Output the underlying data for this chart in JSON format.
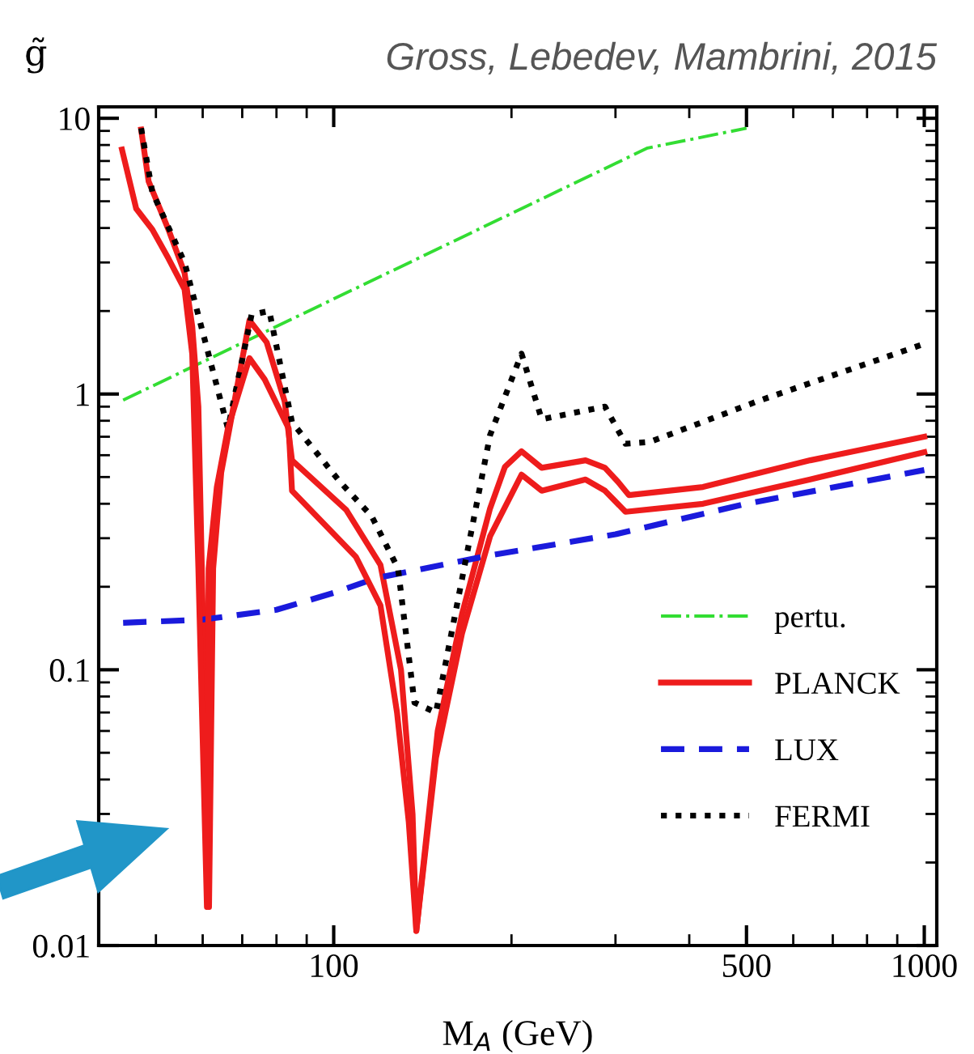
{
  "chart_data": {
    "type": "line",
    "title": "Gross, Lebedev, Mambrini, 2015",
    "xlabel": "M$_{A}$ (GeV)",
    "ylabel": "g̃",
    "log": "xy",
    "xlim": [
      40,
      1050
    ],
    "ylim": [
      0.01,
      11
    ],
    "xticks": [
      100,
      500,
      1000
    ],
    "yticks": [
      {
        "value": 0.01,
        "label": "0.01"
      },
      {
        "value": 0.1,
        "label": "0.1"
      },
      {
        "value": 1,
        "label": "1"
      },
      {
        "value": 10,
        "label": "10"
      }
    ],
    "grid": false,
    "legend": "bottom right",
    "marker": "none",
    "series": [
      {
        "name": "pertu.",
        "color": "#33dd33",
        "line_style": "dashdot",
        "x": [
          44,
          340,
          500
        ],
        "values": [
          0.95,
          7.8,
          9.2
        ]
      },
      {
        "name": "PLANCK",
        "color": "#ee1c1c",
        "line_style": "solid",
        "x": [
          47.2,
          48.6,
          52.5,
          55.9,
          57.6,
          59,
          61.5,
          62.5,
          64.5,
          66.6,
          72,
          77,
          82.6,
          85,
          105,
          120,
          130,
          136,
          138,
          150,
          165,
          184,
          195,
          208,
          225,
          267,
          288,
          303,
          316,
          422,
          641,
          1000
        ],
        "values": [
          9.1,
          5.9,
          3.95,
          2.75,
          1.76,
          0.9,
          0.0138,
          0.233,
          0.52,
          0.75,
          1.85,
          1.54,
          0.94,
          0.575,
          0.38,
          0.24,
          0.1,
          0.03,
          0.0113,
          0.06,
          0.16,
          0.385,
          0.545,
          0.62,
          0.54,
          0.575,
          0.54,
          0.48,
          0.43,
          0.46,
          0.575,
          0.7
        ]
      },
      {
        "name": "LUX",
        "color": "#1a1adc",
        "line_style": "dashed",
        "x": [
          44,
          60,
          80,
          100,
          118,
          184,
          300,
          500,
          1000
        ],
        "values": [
          0.148,
          0.152,
          0.165,
          0.19,
          0.215,
          0.26,
          0.31,
          0.4,
          0.53
        ]
      },
      {
        "name": "FERMI",
        "color": "#000000",
        "line_style": "dotted",
        "x": [
          47.2,
          49.3,
          55.9,
          66.2,
          72.6,
          77.8,
          85,
          102.5,
          116,
          128.5,
          137,
          149,
          184,
          208,
          225,
          288,
          312,
          343,
          521,
          1000
        ],
        "values": [
          9.2,
          5.4,
          3.0,
          0.75,
          1.94,
          2.0,
          0.79,
          0.48,
          0.36,
          0.233,
          0.076,
          0.07,
          0.71,
          1.4,
          0.81,
          0.9,
          0.66,
          0.67,
          0.94,
          1.52
        ]
      },
      {
        "color": "#ee1c1c",
        "line_style": "solid",
        "x": [
          43.8,
          46.3,
          49.3,
          52.5,
          55.9,
          57.6,
          59,
          61,
          61.4,
          63.4,
          66.2,
          72,
          76.4,
          83.9,
          85,
          109,
          120,
          128,
          134,
          138,
          149,
          165,
          184,
          208,
          225,
          267,
          288,
          312,
          422,
          641,
          1000
        ],
        "values": [
          7.7,
          4.7,
          3.95,
          3.1,
          2.4,
          1.4,
          0.233,
          0.0138,
          0.233,
          0.46,
          0.75,
          1.35,
          1.13,
          0.75,
          0.446,
          0.257,
          0.171,
          0.07,
          0.028,
          0.0113,
          0.048,
          0.136,
          0.305,
          0.51,
          0.446,
          0.49,
          0.446,
          0.374,
          0.4,
          0.49,
          0.615
        ]
      }
    ]
  }
}
